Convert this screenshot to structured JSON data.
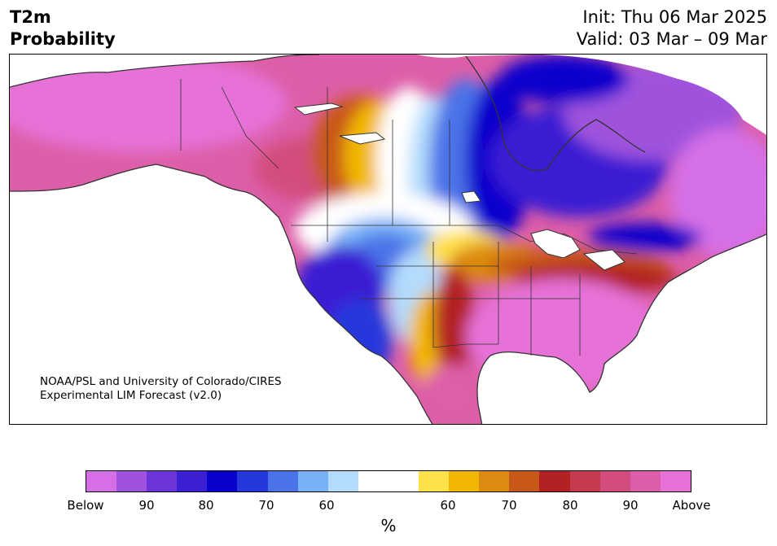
{
  "header": {
    "title_line1": "T2m",
    "title_line2": "Probability",
    "init_line": "Init: Thu 06 Mar 2025",
    "valid_line": "Valid: 03 Mar – 09 Mar"
  },
  "credit": {
    "line1": "NOAA/PSL and University of Colorado/CIRES",
    "line2": "Experimental LIM Forecast (v2.0)"
  },
  "colorbar": {
    "colors": [
      "#d66fe6",
      "#9f52dd",
      "#6b35d9",
      "#3b1fd3",
      "#0a00cc",
      "#2538db",
      "#4b73e8",
      "#78b1f5",
      "#b3dcfc",
      "#ffffff",
      "#ffffff",
      "#ffe14a",
      "#f2b705",
      "#dc8a10",
      "#c85818",
      "#b22222",
      "#c43a4f",
      "#d24d7d",
      "#dd5ea8",
      "#e672d8"
    ],
    "tick_labels": [
      "Below",
      "90",
      "80",
      "70",
      "60",
      "60",
      "70",
      "80",
      "90",
      "Above"
    ],
    "units": "%"
  },
  "map": {
    "region": "North America",
    "below_color": "#0a00cc",
    "above_color": "#e672d8"
  }
}
